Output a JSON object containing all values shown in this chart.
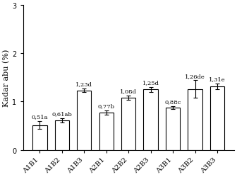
{
  "categories": [
    "A1B1",
    "A1B2",
    "A1B3",
    "A2B1",
    "A2B2",
    "A2B3",
    "A3B1",
    "A3B2",
    "A3B3"
  ],
  "values": [
    0.51,
    0.61,
    1.23,
    0.77,
    1.08,
    1.25,
    0.88,
    1.26,
    1.31
  ],
  "errors": [
    0.08,
    0.05,
    0.04,
    0.04,
    0.04,
    0.05,
    0.03,
    0.18,
    0.06
  ],
  "labels": [
    "0,51a",
    "0,61ab",
    "1,23d",
    "0,77b",
    "1,08d",
    "1,25d",
    "0,88c",
    "1,26de",
    "1,31e"
  ],
  "ylabel": "Kadar abu (%)",
  "ylim": [
    0,
    3
  ],
  "yticks": [
    0,
    1,
    2,
    3
  ],
  "bar_color": "#ffffff",
  "bar_edgecolor": "#000000",
  "background_color": "#ffffff",
  "label_fontsize": 6.0,
  "tick_fontsize": 7,
  "ylabel_fontsize": 8,
  "bar_width": 0.65
}
